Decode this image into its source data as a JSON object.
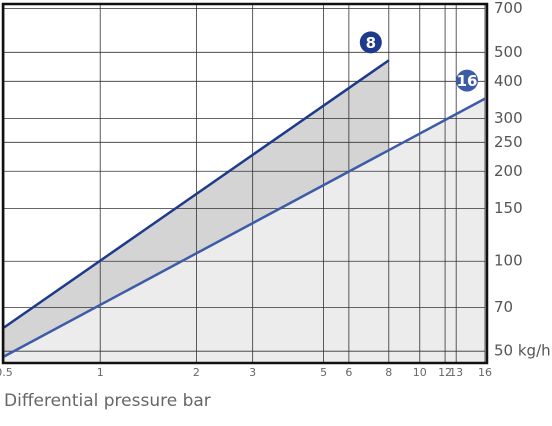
{
  "chart_data": {
    "type": "line",
    "x_label": "Differential pressure bar",
    "xscale": "log",
    "yscale": "log",
    "grid": true,
    "xlim": [
      0.5,
      16
    ],
    "ylim": [
      46,
      720
    ],
    "xticks": [
      0.5,
      1,
      2,
      3,
      5,
      6,
      8,
      10,
      12,
      13,
      16
    ],
    "yticks": [
      {
        "value": 50,
        "label": "50 kg/h"
      },
      70,
      100,
      150,
      200,
      250,
      300,
      400,
      500,
      700
    ],
    "series": [
      {
        "name": "8",
        "color": "#1d3a8c",
        "fill": "#d4d4d4",
        "x": [
          0.5,
          8
        ],
        "values": [
          60,
          470
        ]
      },
      {
        "name": "16",
        "color": "#3d5ca8",
        "fill": "#ececec",
        "x": [
          0.5,
          16
        ],
        "values": [
          48,
          350
        ]
      }
    ]
  }
}
